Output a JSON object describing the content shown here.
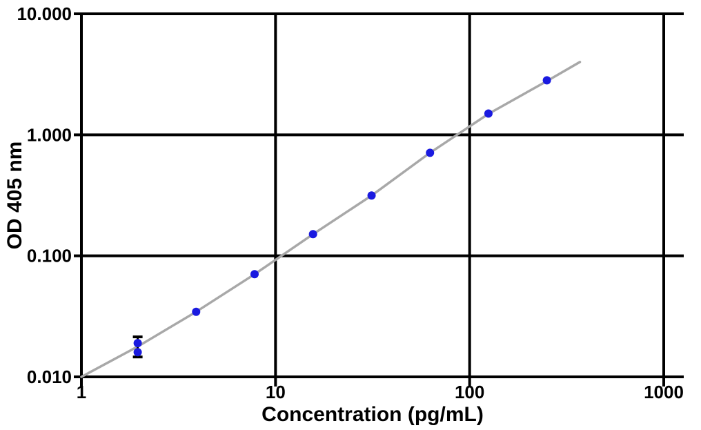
{
  "chart_data": {
    "type": "scatter",
    "subtype": "log-log ELISA standard curve with fitted line and error bars",
    "title": "",
    "xlabel": "Concentration (pg/mL)",
    "ylabel": "OD 405 nm",
    "xscale": "log",
    "yscale": "log",
    "xlim": [
      1,
      1270
    ],
    "ylim": [
      0.01,
      10
    ],
    "x_tick_values": [
      1,
      10,
      100,
      1000
    ],
    "x_tick_labels": [
      "1",
      "10",
      "100",
      "1000"
    ],
    "y_tick_values": [
      0.01,
      0.1,
      1,
      10
    ],
    "y_tick_labels": [
      "0.010",
      "0.100",
      "1.000",
      "10.000"
    ],
    "grid": true,
    "legend": false,
    "colors": {
      "marker": "#1a1ae0",
      "fit_line": "#a8a8a8",
      "axis": "#000000"
    },
    "series": [
      {
        "name": "fitted-standard-curve",
        "type": "line",
        "x": [
          1,
          1.95,
          3.9,
          7.8,
          15.6,
          31.25,
          62.5,
          125,
          250,
          370
        ],
        "y": [
          0.01,
          0.0178,
          0.0345,
          0.0705,
          0.151,
          0.315,
          0.71,
          1.49,
          2.78,
          4.0
        ]
      },
      {
        "name": "standard-points",
        "type": "scatter",
        "points": [
          {
            "x": 1.95,
            "y": 0.019
          },
          {
            "x": 1.95,
            "y": 0.016
          },
          {
            "x": 3.9,
            "y": 0.0345
          },
          {
            "x": 7.8,
            "y": 0.0705
          },
          {
            "x": 15.6,
            "y": 0.151
          },
          {
            "x": 31.25,
            "y": 0.315
          },
          {
            "x": 62.5,
            "y": 0.71
          },
          {
            "x": 125,
            "y": 1.5
          },
          {
            "x": 250,
            "y": 2.82
          }
        ]
      }
    ],
    "error_bars": [
      {
        "x": 1.95,
        "y_low": 0.0146,
        "y_high": 0.0214
      }
    ]
  }
}
